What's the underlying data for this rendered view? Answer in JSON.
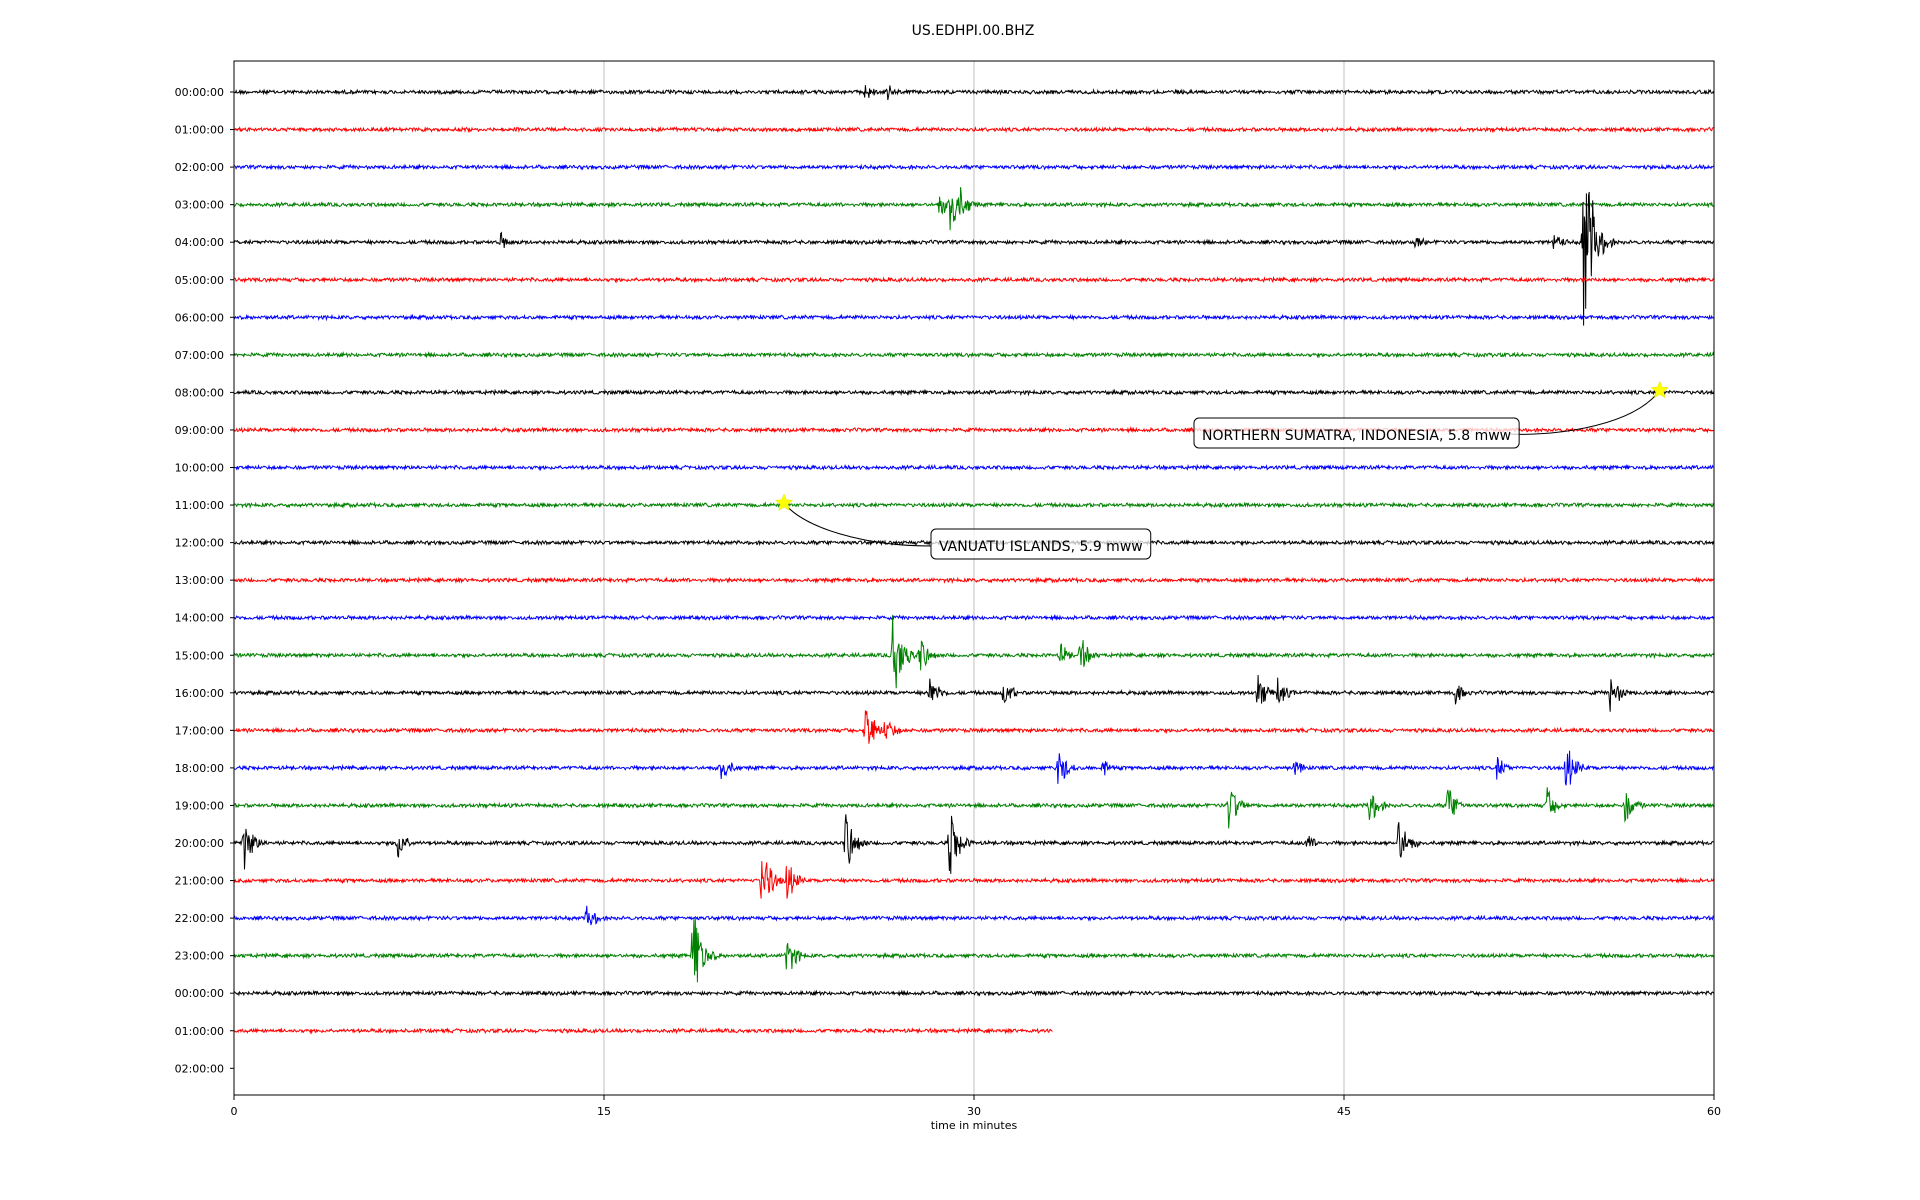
{
  "chart_data": {
    "type": "line",
    "title": "US.EDHPI.00.BHZ",
    "xlabel": "time in minutes",
    "xlim": [
      0,
      60
    ],
    "x_ticks": [
      0,
      15,
      30,
      45,
      60
    ],
    "x_grid": true,
    "row_colors": [
      "#000000",
      "#ff0000",
      "#0000ff",
      "#008000"
    ],
    "row_labels": [
      "00:00:00",
      "01:00:00",
      "02:00:00",
      "03:00:00",
      "04:00:00",
      "05:00:00",
      "06:00:00",
      "07:00:00",
      "08:00:00",
      "09:00:00",
      "10:00:00",
      "11:00:00",
      "12:00:00",
      "13:00:00",
      "14:00:00",
      "15:00:00",
      "16:00:00",
      "17:00:00",
      "18:00:00",
      "19:00:00",
      "20:00:00",
      "21:00:00",
      "22:00:00",
      "23:00:00",
      "00:00:00",
      "01:00:00",
      "02:00:00"
    ],
    "trace_end_minutes": [
      60,
      60,
      60,
      60,
      60,
      60,
      60,
      60,
      60,
      60,
      60,
      60,
      60,
      60,
      60,
      60,
      60,
      60,
      60,
      60,
      60,
      60,
      60,
      60,
      60,
      33.2,
      0
    ],
    "bursts": [
      {
        "row": 0,
        "minute": 25.6,
        "amplitude": 0.3
      },
      {
        "row": 0,
        "minute": 26.5,
        "amplitude": 0.25
      },
      {
        "row": 3,
        "minute": 28.6,
        "amplitude": 0.4
      },
      {
        "row": 3,
        "minute": 29.0,
        "amplitude": 1.3
      },
      {
        "row": 3,
        "minute": 29.4,
        "amplitude": 0.6
      },
      {
        "row": 4,
        "minute": 10.8,
        "amplitude": 0.3
      },
      {
        "row": 4,
        "minute": 47.9,
        "amplitude": 0.25
      },
      {
        "row": 4,
        "minute": 53.5,
        "amplitude": 0.35
      },
      {
        "row": 4,
        "minute": 54.7,
        "amplitude": 3.6
      },
      {
        "row": 4,
        "minute": 55.3,
        "amplitude": 0.6
      },
      {
        "row": 15,
        "minute": 26.7,
        "amplitude": 1.7
      },
      {
        "row": 15,
        "minute": 27.8,
        "amplitude": 0.6
      },
      {
        "row": 15,
        "minute": 33.5,
        "amplitude": 0.4
      },
      {
        "row": 15,
        "minute": 34.3,
        "amplitude": 0.6
      },
      {
        "row": 16,
        "minute": 28.2,
        "amplitude": 0.6
      },
      {
        "row": 16,
        "minute": 31.2,
        "amplitude": 0.5
      },
      {
        "row": 16,
        "minute": 41.5,
        "amplitude": 0.6
      },
      {
        "row": 16,
        "minute": 42.3,
        "amplitude": 0.5
      },
      {
        "row": 16,
        "minute": 49.5,
        "amplitude": 0.4
      },
      {
        "row": 16,
        "minute": 55.8,
        "amplitude": 0.7
      },
      {
        "row": 17,
        "minute": 25.6,
        "amplitude": 1.0
      },
      {
        "row": 17,
        "minute": 26.4,
        "amplitude": 0.5
      },
      {
        "row": 18,
        "minute": 19.7,
        "amplitude": 0.6
      },
      {
        "row": 18,
        "minute": 33.4,
        "amplitude": 0.7
      },
      {
        "row": 18,
        "minute": 35.2,
        "amplitude": 0.3
      },
      {
        "row": 18,
        "minute": 43.0,
        "amplitude": 0.3
      },
      {
        "row": 18,
        "minute": 51.2,
        "amplitude": 0.4
      },
      {
        "row": 18,
        "minute": 54.0,
        "amplitude": 0.8
      },
      {
        "row": 19,
        "minute": 40.3,
        "amplitude": 0.9
      },
      {
        "row": 19,
        "minute": 46.0,
        "amplitude": 0.7
      },
      {
        "row": 19,
        "minute": 49.2,
        "amplitude": 0.7
      },
      {
        "row": 19,
        "minute": 53.2,
        "amplitude": 0.6
      },
      {
        "row": 19,
        "minute": 56.4,
        "amplitude": 0.6
      },
      {
        "row": 20,
        "minute": 0.4,
        "amplitude": 0.9
      },
      {
        "row": 20,
        "minute": 6.6,
        "amplitude": 0.6
      },
      {
        "row": 20,
        "minute": 24.8,
        "amplitude": 1.0
      },
      {
        "row": 20,
        "minute": 29.0,
        "amplitude": 1.2
      },
      {
        "row": 20,
        "minute": 43.5,
        "amplitude": 0.3
      },
      {
        "row": 20,
        "minute": 47.2,
        "amplitude": 0.9
      },
      {
        "row": 21,
        "minute": 21.4,
        "amplitude": 1.2
      },
      {
        "row": 21,
        "minute": 22.4,
        "amplitude": 0.7
      },
      {
        "row": 22,
        "minute": 14.3,
        "amplitude": 0.5
      },
      {
        "row": 23,
        "minute": 18.6,
        "amplitude": 1.7
      },
      {
        "row": 23,
        "minute": 22.4,
        "amplitude": 0.7
      }
    ],
    "annotations": [
      {
        "label": "NORTHERN SUMATRA, INDONESIA, 5.8 mww",
        "row": 8,
        "minute": 57.8
      },
      {
        "label": "VANUATU ISLANDS, 5.9 mww",
        "row": 11,
        "minute": 22.3
      }
    ],
    "event_marker_color": "#ffff00"
  }
}
